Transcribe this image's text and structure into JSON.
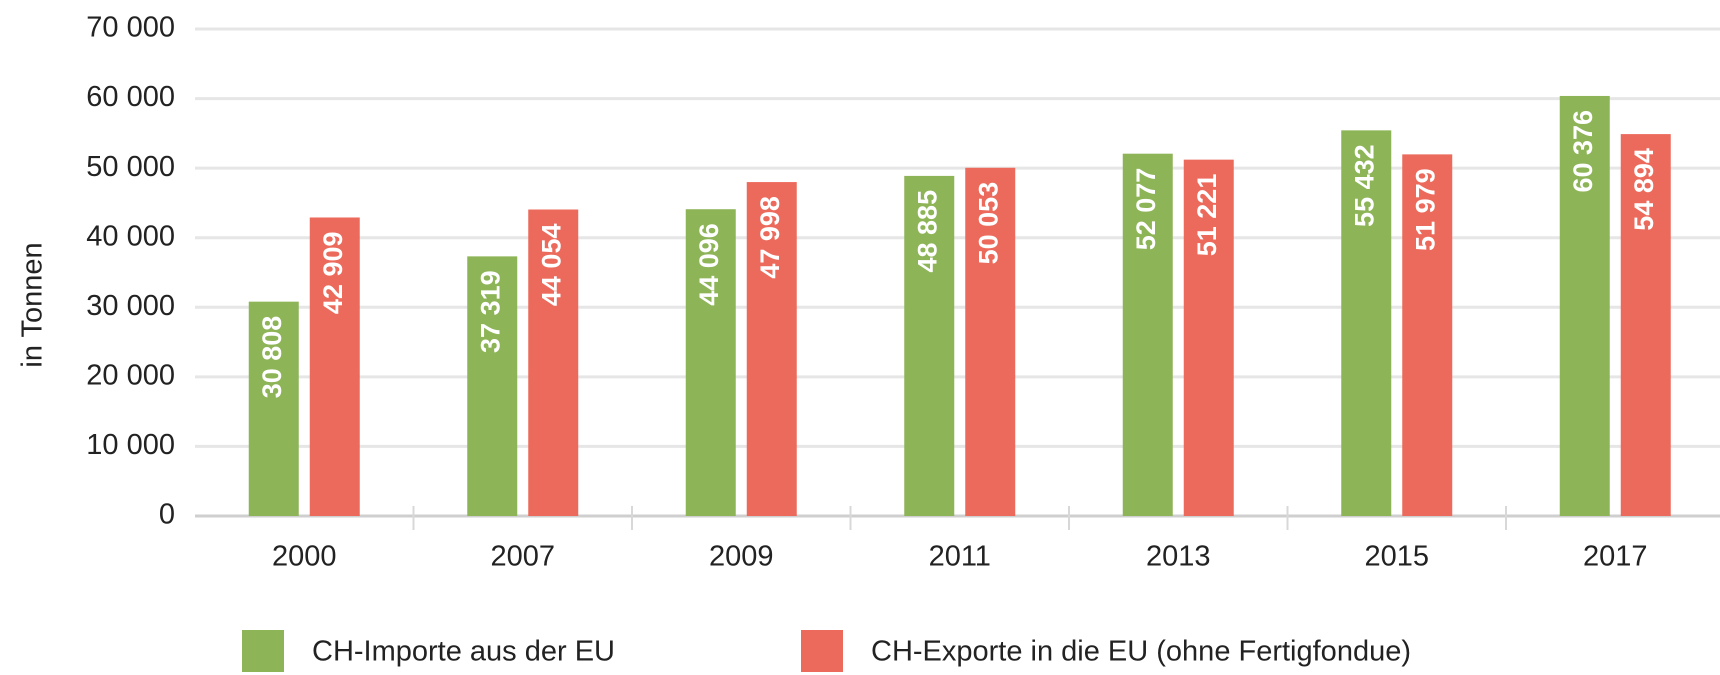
{
  "chart_data": {
    "type": "bar",
    "y_label": "in Tonnen",
    "categories": [
      "2000",
      "2007",
      "2009",
      "2011",
      "2013",
      "2015",
      "2017"
    ],
    "series": [
      {
        "name": "CH-Importe aus der EU",
        "color": "#8db457",
        "values": [
          30808,
          37319,
          44096,
          48885,
          52077,
          55432,
          60376
        ],
        "value_labels": [
          "30 808",
          "37 319",
          "44 096",
          "48 885",
          "52 077",
          "55 432",
          "60 376"
        ]
      },
      {
        "name": "CH-Exporte in die EU (ohne Fertigfondue)",
        "color": "#ec6a5c",
        "values": [
          42909,
          44054,
          47998,
          50053,
          51221,
          51979,
          54894
        ],
        "value_labels": [
          "42 909",
          "44 054",
          "47 998",
          "50 053",
          "51 221",
          "51 979",
          "54 894"
        ]
      }
    ],
    "ylim": [
      0,
      70000
    ],
    "yticks": [
      0,
      {
        "value": 10000,
        "label": "10 000"
      },
      {
        "value": 20000,
        "label": "20 000"
      },
      {
        "value": 30000,
        "label": "30 000"
      },
      {
        "value": 40000,
        "label": "40 000"
      },
      {
        "value": 50000,
        "label": "50 000"
      },
      {
        "value": 60000,
        "label": "60 000"
      },
      {
        "value": 70000,
        "label": "70 000"
      }
    ],
    "grid": true
  }
}
